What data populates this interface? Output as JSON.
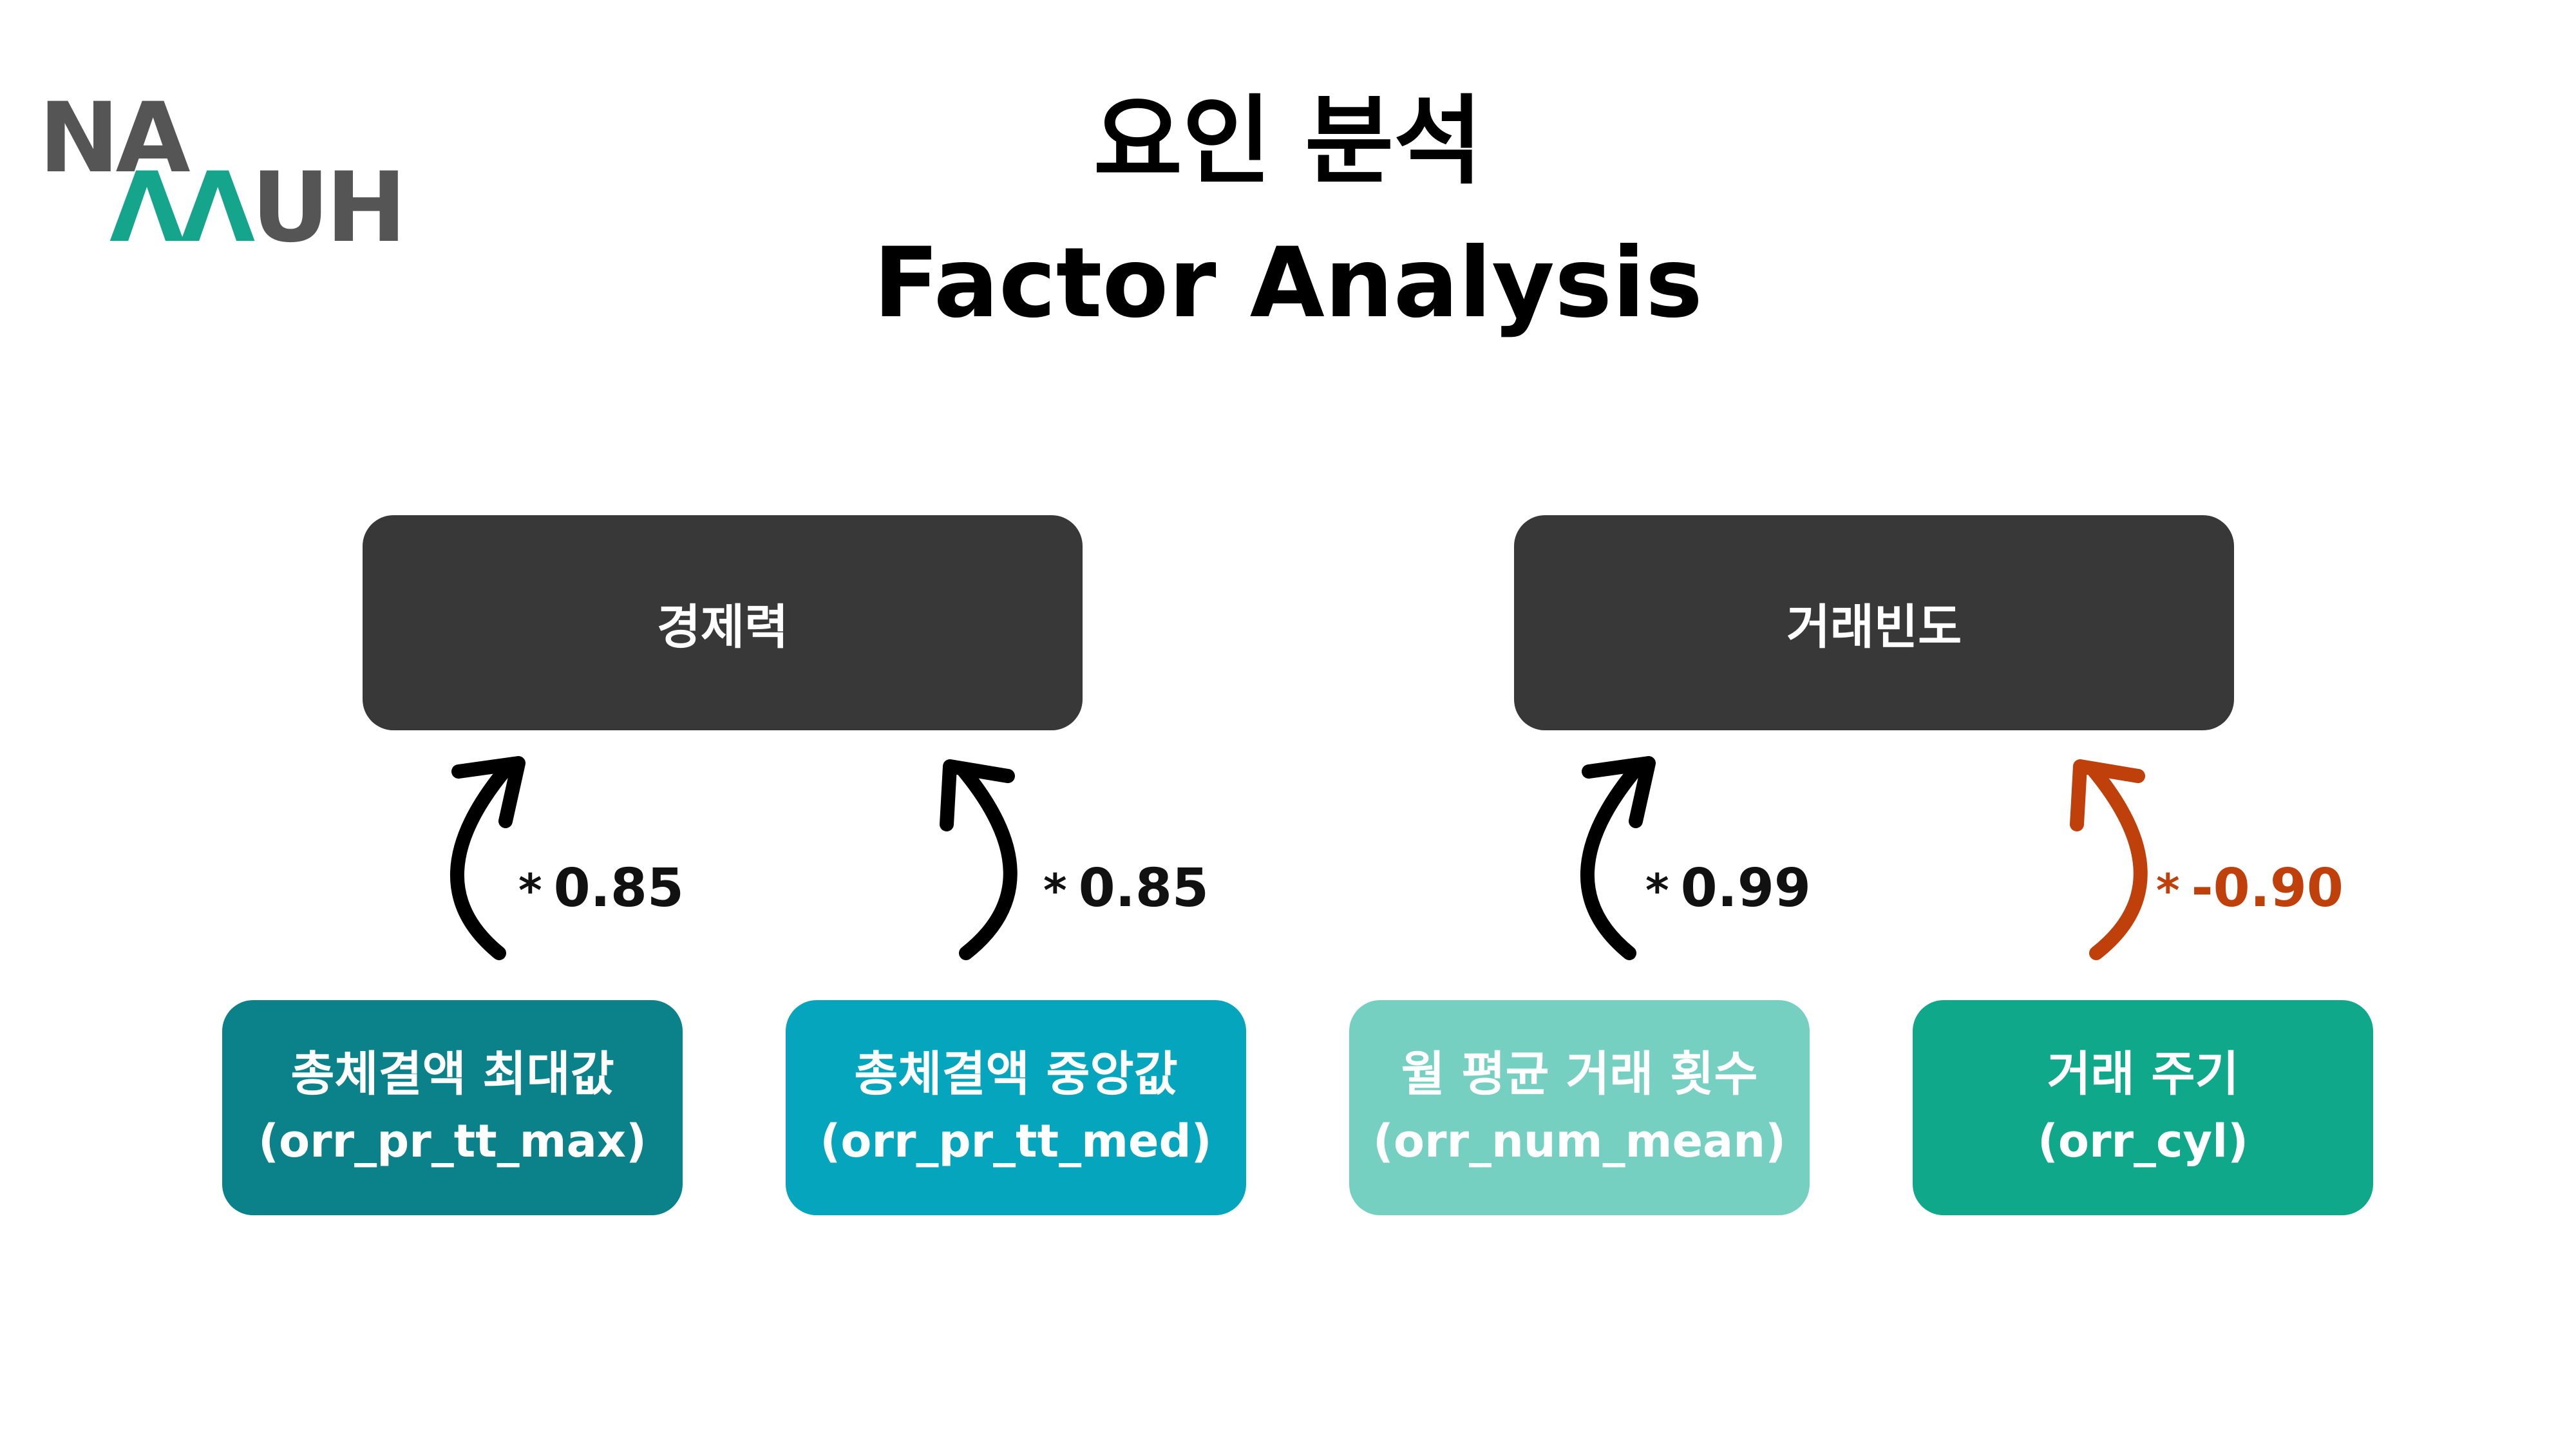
{
  "logo": {
    "line1": "NA",
    "line2_mark": "Λ",
    "line2_rest": "UH"
  },
  "title": {
    "korean": "요인 분석",
    "english": "Factor Analysis"
  },
  "factors": [
    {
      "label": "경제력"
    },
    {
      "label": "거래빈도"
    }
  ],
  "variables": [
    {
      "name": "총체결액 최대값",
      "code": "(orr_pr_tt_max)",
      "color": "#0b818a"
    },
    {
      "name": "총체결액 중앙값",
      "code": "(orr_pr_tt_med)",
      "color": "#05a6bd"
    },
    {
      "name": "월 평균 거래 횟수",
      "code": "(orr_num_mean)",
      "color": "#76d0c1"
    },
    {
      "name": "거래 주기",
      "code": "(orr_cyl)",
      "color": "#10a88b"
    }
  ],
  "loadings": [
    {
      "star": "*",
      "value": "0.85",
      "color": "#111111"
    },
    {
      "star": "*",
      "value": "0.85",
      "color": "#111111"
    },
    {
      "star": "*",
      "value": "0.99",
      "color": "#111111"
    },
    {
      "star": "*",
      "value": "-0.90",
      "color": "#c0400c"
    }
  ]
}
